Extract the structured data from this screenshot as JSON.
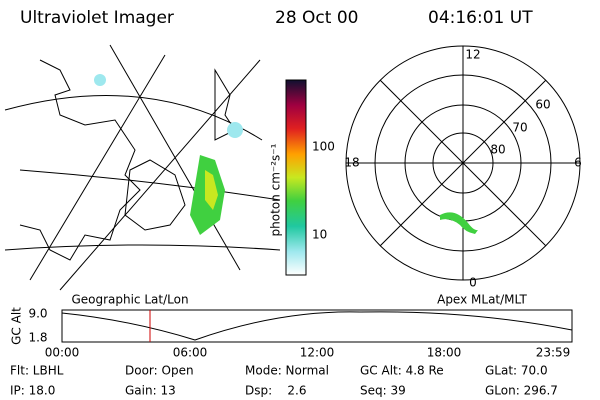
{
  "header": {
    "title": "Ultraviolet Imager",
    "date": "28 Oct 00",
    "time": "04:16:01 UT"
  },
  "map": {
    "label": "Geographic Lat/Lon"
  },
  "colorbar": {
    "label": "photon cm⁻²s⁻¹",
    "ticks": [
      "100",
      "10"
    ]
  },
  "polar": {
    "label": "Apex MLat/MLT",
    "hours": [
      "12",
      "18",
      "6",
      "0"
    ],
    "latitudes": [
      "60",
      "70",
      "80"
    ]
  },
  "altitude": {
    "label": "GC Alt",
    "ticks": [
      "9.0",
      "1.8"
    ],
    "times": [
      "00:00",
      "06:00",
      "12:00",
      "18:00",
      "23:59"
    ]
  },
  "info": {
    "rows": [
      [
        "Flt: LBHL",
        "Door: Open",
        "Mode: Normal",
        "GC Alt: 4.8 Re",
        "GLat: 70.0"
      ],
      [
        "IP: 18.0",
        "Gain: 13",
        "Dsp:    2.6",
        "Seq: 39",
        "GLon: 296.7"
      ]
    ]
  }
}
